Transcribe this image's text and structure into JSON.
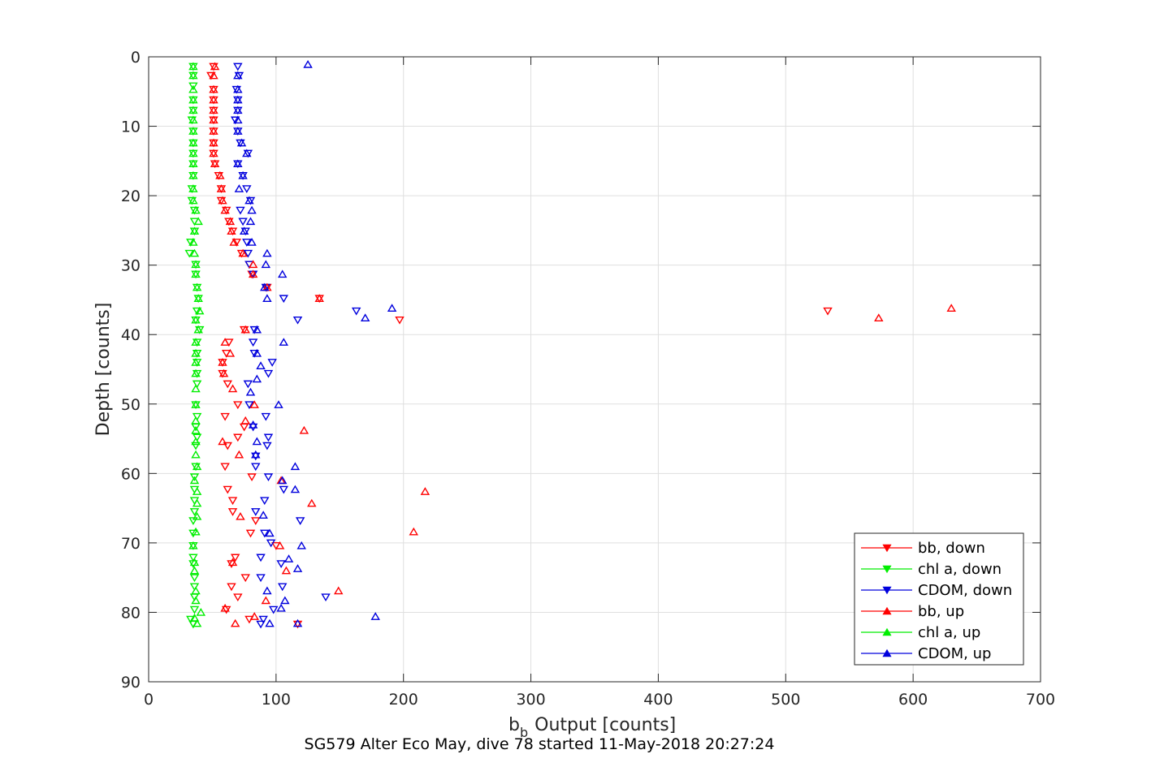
{
  "chart_data": {
    "type": "scatter",
    "title": "SG579 Alter Eco May, dive 78 started 11-May-2018 20:27:24",
    "xlabel": "Output [counts]",
    "xlabel_symbol": "b",
    "xlabel_subscript": "b",
    "ylabel": "Depth [counts]",
    "xlim": [
      0,
      700
    ],
    "ylim": [
      0,
      90
    ],
    "y_reversed": true,
    "x_ticks": [
      "0",
      "100",
      "200",
      "300",
      "400",
      "500",
      "600",
      "700"
    ],
    "y_ticks": [
      "0",
      "10",
      "20",
      "30",
      "40",
      "50",
      "60",
      "70",
      "80",
      "90"
    ],
    "x_tick_values": [
      0,
      100,
      200,
      300,
      400,
      500,
      600,
      700
    ],
    "y_tick_values": [
      0,
      10,
      20,
      30,
      40,
      50,
      60,
      70,
      80,
      90
    ],
    "grid": true,
    "legend_position": "bottom-right",
    "series": [
      {
        "name": "bb, down",
        "color": "#ff0000",
        "marker": "triangle-down",
        "points": [
          [
            51,
            1.4
          ],
          [
            49,
            2.7
          ],
          [
            51,
            4.7
          ],
          [
            51,
            6.2
          ],
          [
            51,
            7.7
          ],
          [
            51,
            9.1
          ],
          [
            51,
            10.7
          ],
          [
            51,
            12.4
          ],
          [
            51,
            13.9
          ],
          [
            52,
            15.4
          ],
          [
            55,
            17.1
          ],
          [
            57,
            19.0
          ],
          [
            57,
            20.7
          ],
          [
            61,
            22.1
          ],
          [
            63,
            23.7
          ],
          [
            66,
            25.1
          ],
          [
            69,
            26.7
          ],
          [
            73,
            28.3
          ],
          [
            79,
            29.9
          ],
          [
            81,
            31.3
          ],
          [
            93,
            33.2
          ],
          [
            134,
            34.8
          ],
          [
            533,
            36.6
          ],
          [
            197,
            37.9
          ],
          [
            75,
            39.3
          ],
          [
            63,
            41.1
          ],
          [
            61,
            42.7
          ],
          [
            58,
            44.0
          ],
          [
            58,
            45.6
          ],
          [
            62,
            47.1
          ],
          [
            70,
            50.1
          ],
          [
            60,
            51.8
          ],
          [
            75,
            53.3
          ],
          [
            70,
            54.8
          ],
          [
            62,
            56.0
          ],
          [
            60,
            59.0
          ],
          [
            81,
            60.5
          ],
          [
            62,
            62.3
          ],
          [
            66,
            63.9
          ],
          [
            66,
            65.5
          ],
          [
            84,
            66.8
          ],
          [
            80,
            68.6
          ],
          [
            100,
            70.4
          ],
          [
            68,
            72.1
          ],
          [
            65,
            73.0
          ],
          [
            76,
            75.0
          ],
          [
            65,
            76.3
          ],
          [
            70,
            77.8
          ],
          [
            61,
            79.6
          ],
          [
            79,
            81.0
          ],
          [
            117,
            81.7
          ]
        ]
      },
      {
        "name": "chl a, down",
        "color": "#00ee00",
        "marker": "triangle-down",
        "points": [
          [
            35,
            1.4
          ],
          [
            35,
            2.7
          ],
          [
            35,
            4.2
          ],
          [
            35,
            6.2
          ],
          [
            35,
            7.7
          ],
          [
            34,
            9.1
          ],
          [
            35,
            10.7
          ],
          [
            35,
            12.4
          ],
          [
            35,
            13.9
          ],
          [
            35,
            15.4
          ],
          [
            35,
            17.1
          ],
          [
            34,
            19.0
          ],
          [
            34,
            20.7
          ],
          [
            36,
            22.1
          ],
          [
            36,
            23.7
          ],
          [
            36,
            25.1
          ],
          [
            33,
            26.7
          ],
          [
            32,
            28.3
          ],
          [
            37,
            29.9
          ],
          [
            37,
            31.3
          ],
          [
            38,
            33.2
          ],
          [
            39,
            34.8
          ],
          [
            38,
            36.6
          ],
          [
            37,
            37.9
          ],
          [
            40,
            39.3
          ],
          [
            38,
            41.1
          ],
          [
            38,
            42.7
          ],
          [
            38,
            44.0
          ],
          [
            38,
            45.6
          ],
          [
            38,
            47.1
          ],
          [
            37,
            50.1
          ],
          [
            38,
            51.8
          ],
          [
            37,
            53.3
          ],
          [
            38,
            54.8
          ],
          [
            37,
            56.0
          ],
          [
            37,
            59.0
          ],
          [
            36,
            60.5
          ],
          [
            36,
            62.3
          ],
          [
            36,
            63.9
          ],
          [
            36,
            65.5
          ],
          [
            35,
            66.8
          ],
          [
            35,
            68.6
          ],
          [
            35,
            70.4
          ],
          [
            35,
            72.1
          ],
          [
            35,
            73.0
          ],
          [
            36,
            75.0
          ],
          [
            36,
            76.3
          ],
          [
            36,
            77.8
          ],
          [
            36,
            79.6
          ],
          [
            33,
            81.0
          ],
          [
            35,
            81.7
          ]
        ]
      },
      {
        "name": "CDOM, down",
        "color": "#0000dd",
        "marker": "triangle-down",
        "points": [
          [
            70,
            1.4
          ],
          [
            71,
            2.7
          ],
          [
            69,
            4.7
          ],
          [
            70,
            6.2
          ],
          [
            70,
            7.7
          ],
          [
            68,
            9.1
          ],
          [
            70,
            10.7
          ],
          [
            72,
            12.4
          ],
          [
            78,
            13.9
          ],
          [
            70,
            15.4
          ],
          [
            74,
            17.1
          ],
          [
            77,
            19.0
          ],
          [
            80,
            20.7
          ],
          [
            72,
            22.1
          ],
          [
            74,
            23.7
          ],
          [
            76,
            25.1
          ],
          [
            77,
            26.7
          ],
          [
            78,
            28.3
          ],
          [
            79,
            29.9
          ],
          [
            82,
            31.3
          ],
          [
            92,
            33.2
          ],
          [
            106,
            34.8
          ],
          [
            163,
            36.6
          ],
          [
            117,
            37.9
          ],
          [
            83,
            39.3
          ],
          [
            82,
            41.1
          ],
          [
            83,
            42.7
          ],
          [
            97,
            44.0
          ],
          [
            94,
            45.6
          ],
          [
            78,
            47.1
          ],
          [
            79,
            50.1
          ],
          [
            92,
            51.8
          ],
          [
            82,
            53.3
          ],
          [
            94,
            54.8
          ],
          [
            93,
            56.0
          ],
          [
            84,
            57.5
          ],
          [
            84,
            59.0
          ],
          [
            94,
            60.5
          ],
          [
            106,
            62.3
          ],
          [
            91,
            63.9
          ],
          [
            84,
            65.5
          ],
          [
            119,
            66.8
          ],
          [
            91,
            68.6
          ],
          [
            96,
            70.0
          ],
          [
            88,
            72.1
          ],
          [
            104,
            73.0
          ],
          [
            88,
            75.0
          ],
          [
            105,
            76.3
          ],
          [
            139,
            77.8
          ],
          [
            98,
            79.6
          ],
          [
            90,
            81.0
          ],
          [
            88,
            81.7
          ]
        ]
      },
      {
        "name": "bb, up",
        "color": "#ff0000",
        "marker": "triangle-up",
        "points": [
          [
            52,
            1.4
          ],
          [
            51,
            2.7
          ],
          [
            51,
            4.7
          ],
          [
            51,
            6.2
          ],
          [
            51,
            7.7
          ],
          [
            51,
            9.1
          ],
          [
            51,
            10.7
          ],
          [
            51,
            12.4
          ],
          [
            51,
            13.9
          ],
          [
            52,
            15.4
          ],
          [
            56,
            17.1
          ],
          [
            57,
            19.0
          ],
          [
            58,
            20.7
          ],
          [
            60,
            22.1
          ],
          [
            64,
            23.7
          ],
          [
            65,
            25.1
          ],
          [
            67,
            26.7
          ],
          [
            74,
            28.3
          ],
          [
            82,
            29.9
          ],
          [
            82,
            31.3
          ],
          [
            93,
            33.2
          ],
          [
            134,
            34.8
          ],
          [
            630,
            36.2
          ],
          [
            573,
            37.6
          ],
          [
            76,
            39.3
          ],
          [
            60,
            41.1
          ],
          [
            64,
            42.7
          ],
          [
            58,
            44.0
          ],
          [
            59,
            45.6
          ],
          [
            66,
            47.8
          ],
          [
            83,
            50.1
          ],
          [
            76,
            52.4
          ],
          [
            122,
            53.8
          ],
          [
            58,
            55.4
          ],
          [
            71,
            57.3
          ],
          [
            104,
            61.0
          ],
          [
            217,
            62.6
          ],
          [
            128,
            64.3
          ],
          [
            72,
            66.2
          ],
          [
            208,
            68.4
          ],
          [
            103,
            70.4
          ],
          [
            66,
            72.8
          ],
          [
            108,
            74.0
          ],
          [
            149,
            76.9
          ],
          [
            92,
            78.3
          ],
          [
            60,
            79.4
          ],
          [
            83,
            80.6
          ],
          [
            68,
            81.6
          ]
        ]
      },
      {
        "name": "chl a, up",
        "color": "#00ee00",
        "marker": "triangle-up",
        "points": [
          [
            35,
            1.4
          ],
          [
            35,
            2.7
          ],
          [
            35,
            4.7
          ],
          [
            35,
            6.2
          ],
          [
            35,
            7.7
          ],
          [
            35,
            9.1
          ],
          [
            35,
            10.7
          ],
          [
            35,
            12.4
          ],
          [
            35,
            13.9
          ],
          [
            35,
            15.4
          ],
          [
            35,
            17.1
          ],
          [
            35,
            19.0
          ],
          [
            35,
            20.7
          ],
          [
            37,
            22.1
          ],
          [
            39,
            23.7
          ],
          [
            36,
            25.1
          ],
          [
            35,
            26.7
          ],
          [
            36,
            28.3
          ],
          [
            37,
            29.9
          ],
          [
            37,
            31.3
          ],
          [
            38,
            33.2
          ],
          [
            39,
            34.8
          ],
          [
            40,
            36.6
          ],
          [
            37,
            37.9
          ],
          [
            39,
            39.3
          ],
          [
            37,
            41.1
          ],
          [
            37,
            42.7
          ],
          [
            37,
            44.0
          ],
          [
            37,
            45.6
          ],
          [
            37,
            47.8
          ],
          [
            37,
            50.1
          ],
          [
            37,
            52.4
          ],
          [
            37,
            53.8
          ],
          [
            37,
            55.4
          ],
          [
            37,
            57.3
          ],
          [
            38,
            59.0
          ],
          [
            36,
            61.0
          ],
          [
            38,
            62.6
          ],
          [
            38,
            64.3
          ],
          [
            38,
            66.2
          ],
          [
            37,
            68.4
          ],
          [
            35,
            70.4
          ],
          [
            36,
            72.8
          ],
          [
            36,
            74.0
          ],
          [
            37,
            76.9
          ],
          [
            37,
            78.3
          ],
          [
            41,
            80.0
          ],
          [
            36,
            80.8
          ],
          [
            38,
            81.6
          ]
        ]
      },
      {
        "name": "CDOM, up",
        "color": "#0000dd",
        "marker": "triangle-up",
        "points": [
          [
            125,
            1.1
          ],
          [
            70,
            2.7
          ],
          [
            70,
            4.7
          ],
          [
            70,
            6.2
          ],
          [
            70,
            7.7
          ],
          [
            70,
            9.1
          ],
          [
            70,
            10.7
          ],
          [
            73,
            12.4
          ],
          [
            77,
            13.9
          ],
          [
            70,
            15.4
          ],
          [
            74,
            17.1
          ],
          [
            71,
            19.0
          ],
          [
            79,
            20.7
          ],
          [
            81,
            22.1
          ],
          [
            80,
            23.7
          ],
          [
            75,
            25.1
          ],
          [
            81,
            26.7
          ],
          [
            93,
            28.3
          ],
          [
            92,
            29.9
          ],
          [
            105,
            31.3
          ],
          [
            91,
            33.2
          ],
          [
            93,
            34.8
          ],
          [
            191,
            36.2
          ],
          [
            170,
            37.6
          ],
          [
            85,
            39.3
          ],
          [
            106,
            41.1
          ],
          [
            85,
            42.7
          ],
          [
            88,
            44.5
          ],
          [
            85,
            46.4
          ],
          [
            80,
            48.3
          ],
          [
            102,
            50.1
          ],
          [
            82,
            53.0
          ],
          [
            85,
            55.4
          ],
          [
            84,
            57.3
          ],
          [
            115,
            59.0
          ],
          [
            105,
            61.0
          ],
          [
            115,
            62.3
          ],
          [
            90,
            66.0
          ],
          [
            95,
            68.6
          ],
          [
            120,
            70.4
          ],
          [
            110,
            72.3
          ],
          [
            117,
            73.7
          ],
          [
            93,
            76.9
          ],
          [
            107,
            78.3
          ],
          [
            104,
            79.4
          ],
          [
            178,
            80.6
          ],
          [
            95,
            81.6
          ],
          [
            117,
            81.6
          ]
        ]
      }
    ]
  }
}
